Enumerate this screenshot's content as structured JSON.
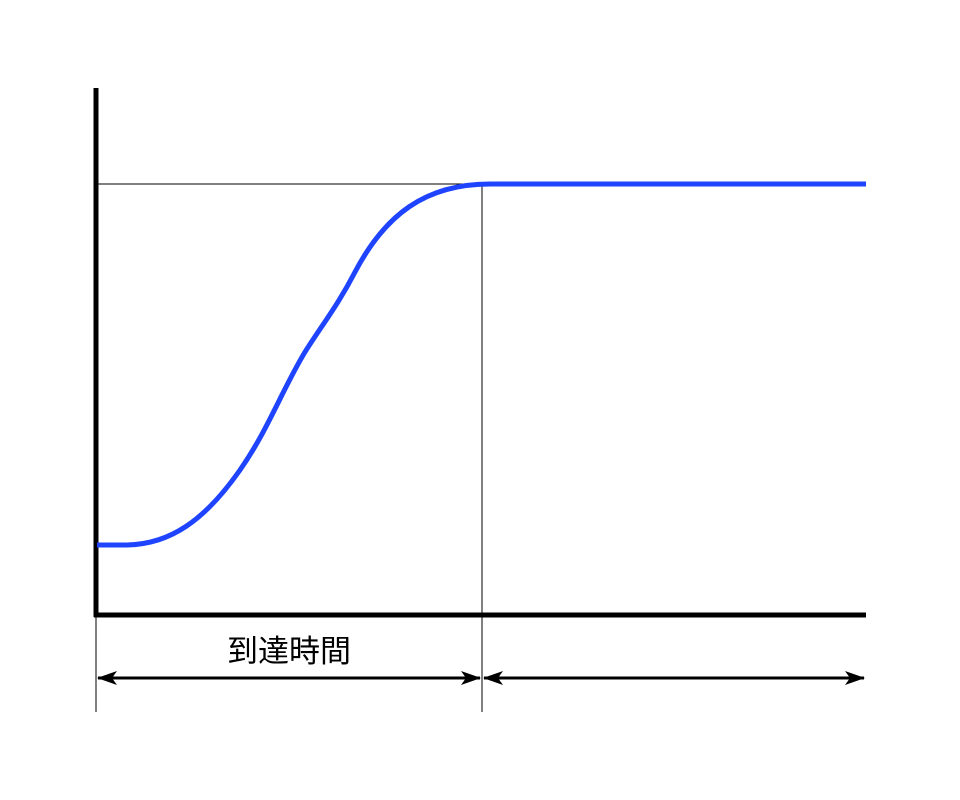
{
  "diagram": {
    "span_label": "到達時間",
    "curve_color": "#1f44ff",
    "axis_color": "#000000"
  }
}
